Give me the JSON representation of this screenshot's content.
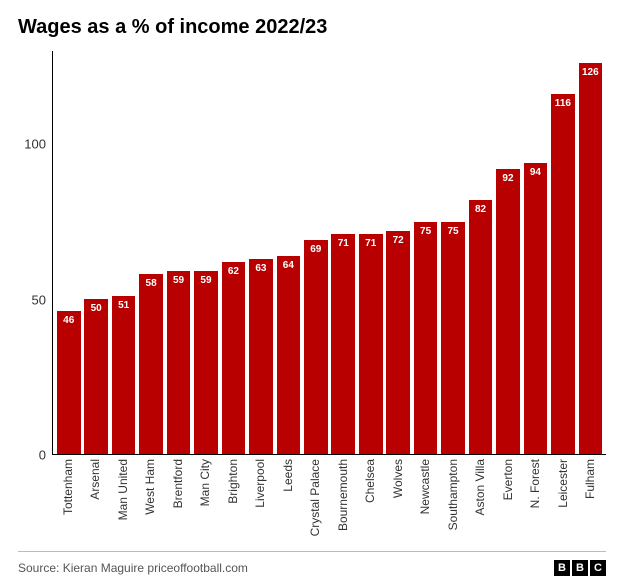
{
  "chart": {
    "type": "bar",
    "title": "Wages as a % of income 2022/23",
    "title_fontsize": 20,
    "title_color": "#000000",
    "background_color": "#ffffff",
    "axis_color": "#000000",
    "bar_color": "#b80000",
    "bar_width": 0.86,
    "bar_label_color": "#ffffff",
    "bar_label_fontsize": 10,
    "y": {
      "lim": [
        0,
        130
      ],
      "ticks": [
        0,
        50,
        100
      ],
      "label_fontsize": 13,
      "label_color": "#333333"
    },
    "x": {
      "label_fontsize": 12,
      "label_color": "#333333",
      "rotation": -90
    },
    "categories": [
      "Tottenham",
      "Arsenal",
      "Man United",
      "West Ham",
      "Brentford",
      "Man City",
      "Brighton",
      "Liverpool",
      "Leeds",
      "Crystal Palace",
      "Bournemouth",
      "Chelsea",
      "Wolves",
      "Newcastle",
      "Southampton",
      "Aston Villa",
      "Everton",
      "N. Forest",
      "Leicester",
      "Fulham"
    ],
    "values": [
      46,
      50,
      51,
      58,
      59,
      59,
      62,
      63,
      64,
      69,
      71,
      71,
      72,
      75,
      75,
      82,
      92,
      94,
      116,
      126
    ]
  },
  "footer": {
    "source": "Source: Kieran Maguire priceoffootball.com",
    "source_fontsize": 12,
    "source_color": "#555555",
    "logo_letters": [
      "B",
      "B",
      "C"
    ],
    "logo_bg": "#000000",
    "logo_fg": "#ffffff"
  }
}
